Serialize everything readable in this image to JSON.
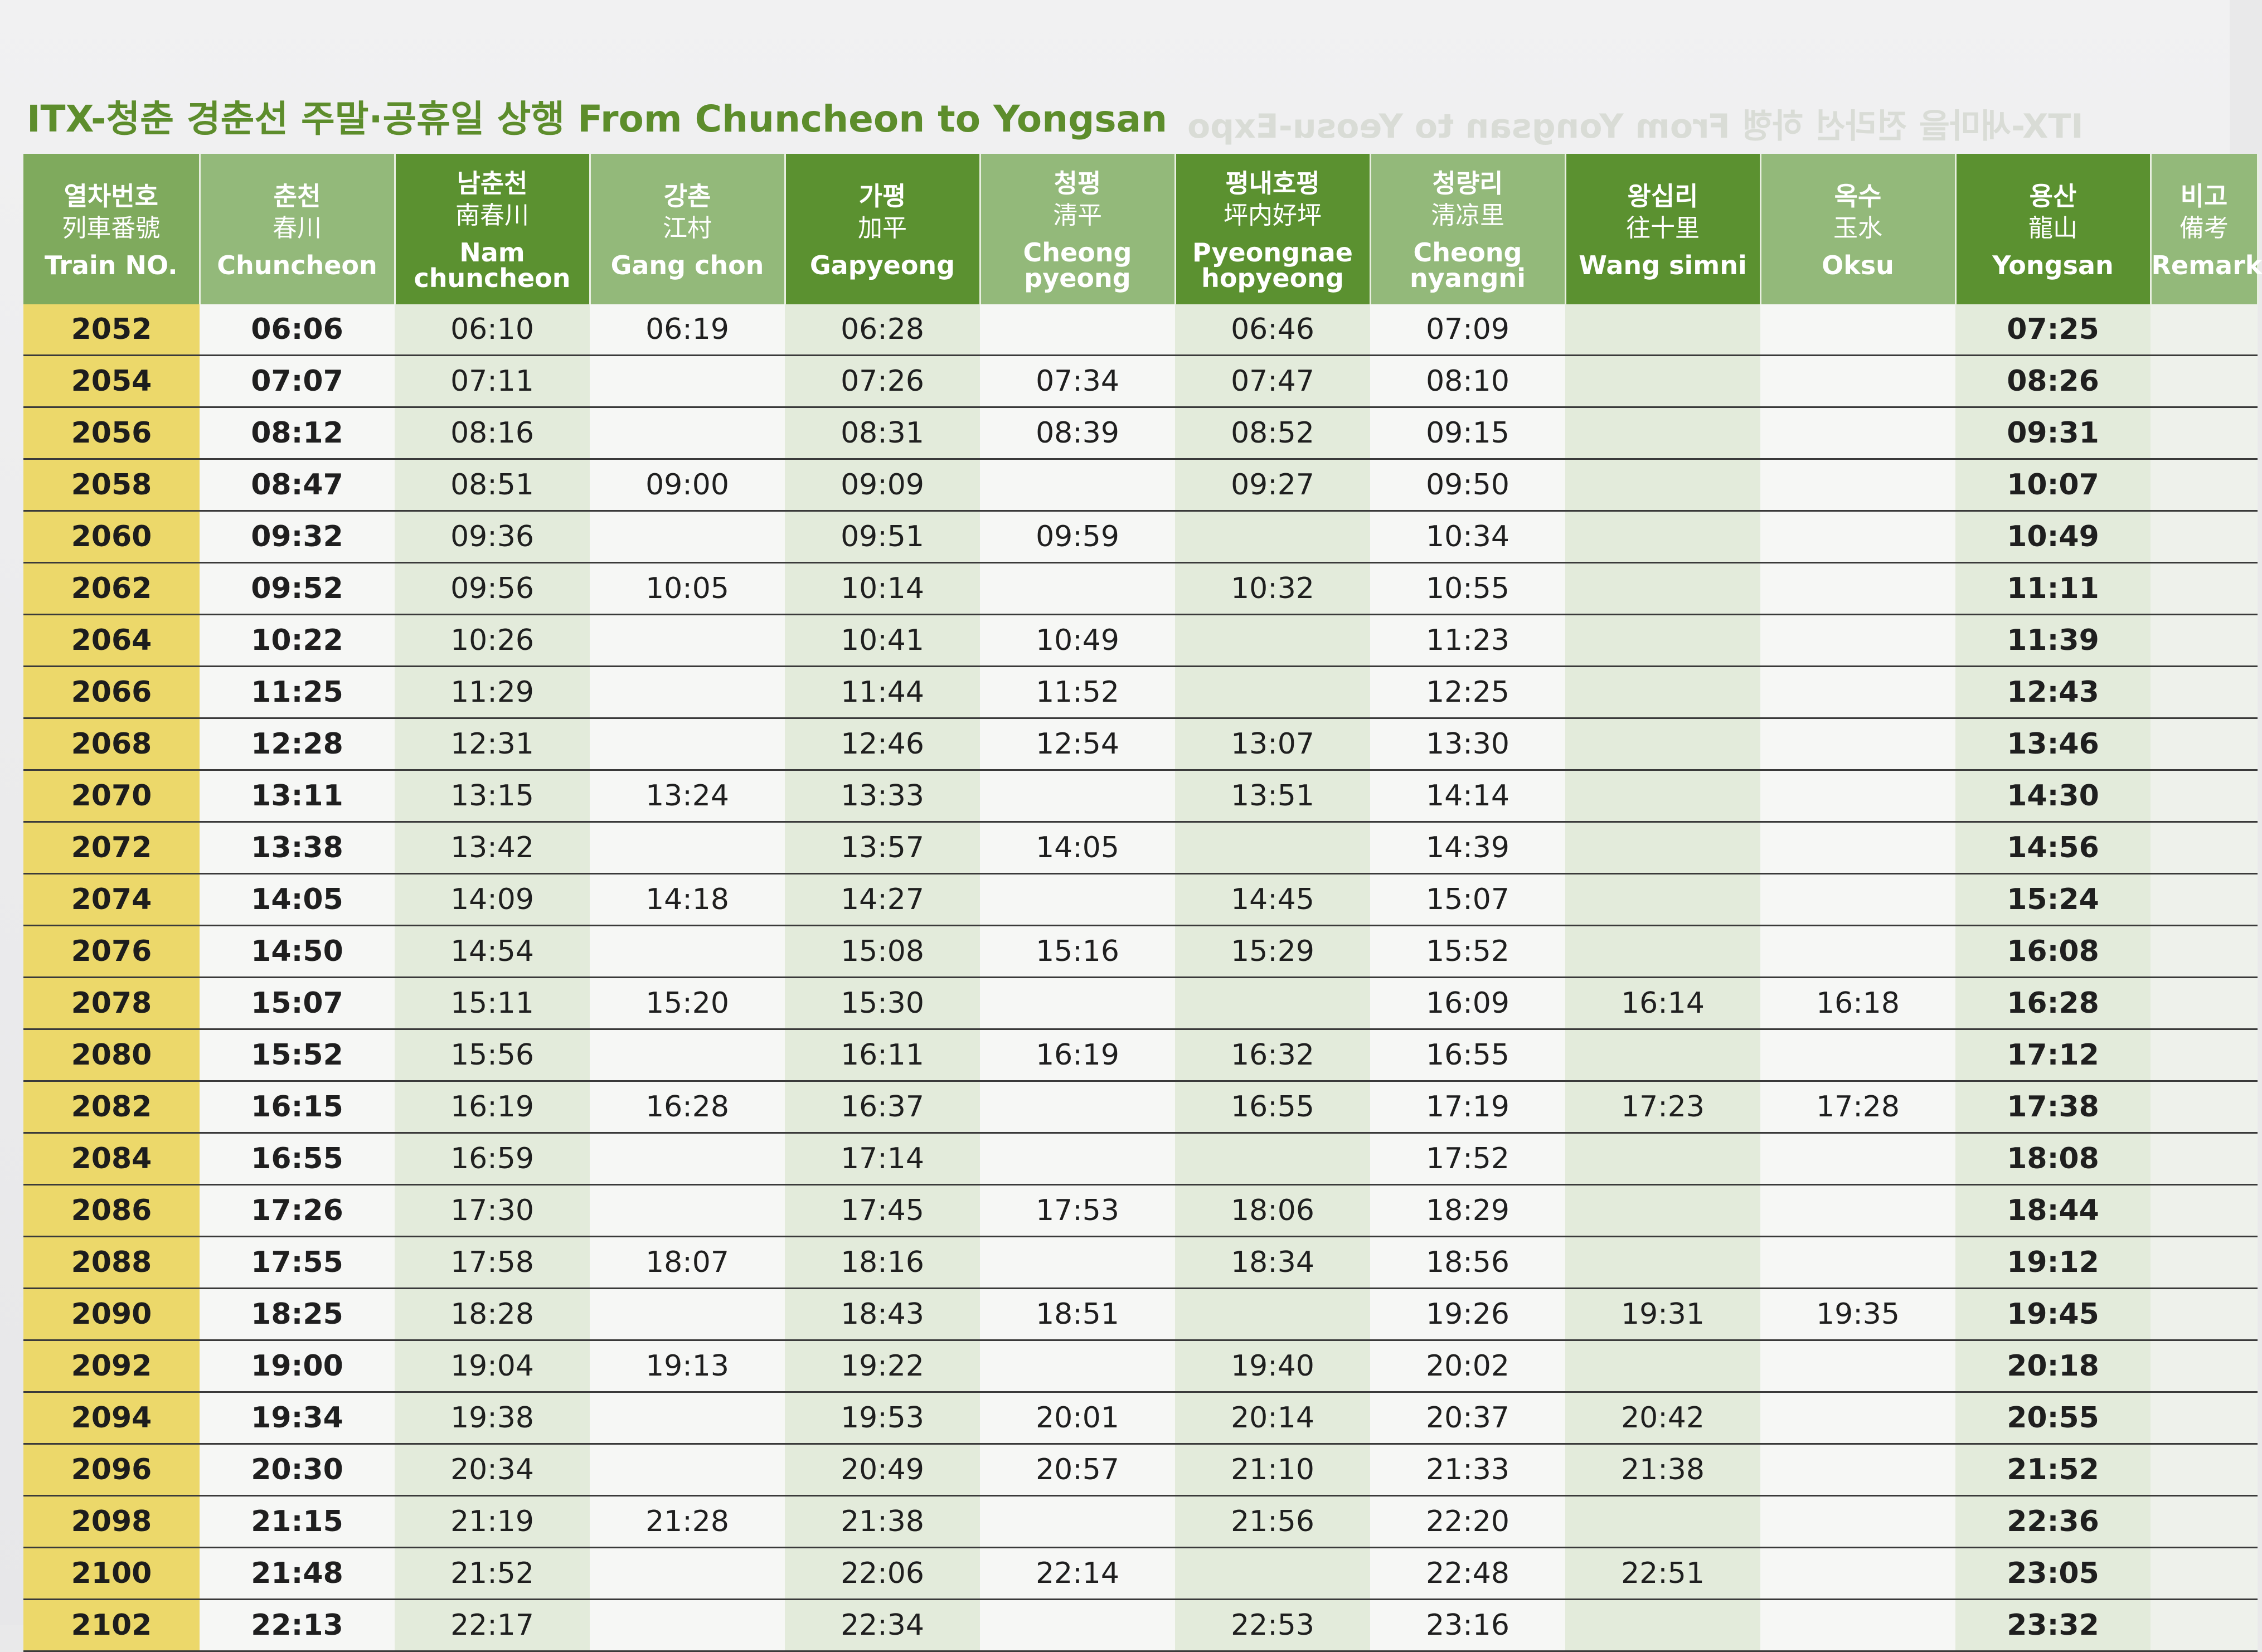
{
  "title": "ITX-청춘 경춘선 주말·공휴일 상행 From Chuncheon to Yongsan",
  "back_page_title": "ITX-새마을 전라선 하행 From Yongsan to Yeosu-Expo",
  "columns": [
    {
      "ko": "열차번호",
      "han": "列車番號",
      "en": "Train NO."
    },
    {
      "ko": "춘천",
      "han": "春川",
      "en": "Chuncheon"
    },
    {
      "ko": "남춘천",
      "han": "南春川",
      "en": "Nam chuncheon"
    },
    {
      "ko": "강촌",
      "han": "江村",
      "en": "Gang chon"
    },
    {
      "ko": "가평",
      "han": "加平",
      "en": "Gapyeong"
    },
    {
      "ko": "청평",
      "han": "淸平",
      "en": "Cheong pyeong"
    },
    {
      "ko": "평내호평",
      "han": "坪内好坪",
      "en": "Pyeongnae hopyeong"
    },
    {
      "ko": "청량리",
      "han": "淸凉里",
      "en": "Cheong nyangni"
    },
    {
      "ko": "왕십리",
      "han": "往十里",
      "en": "Wang simni"
    },
    {
      "ko": "옥수",
      "han": "玉水",
      "en": "Oksu"
    },
    {
      "ko": "용산",
      "han": "龍山",
      "en": "Yongsan"
    },
    {
      "ko": "비고",
      "han": "備考",
      "en": "Remark"
    }
  ],
  "rows": [
    [
      "2052",
      "06:06",
      "06:10",
      "06:19",
      "06:28",
      "",
      "06:46",
      "07:09",
      "",
      "",
      "07:25",
      ""
    ],
    [
      "2054",
      "07:07",
      "07:11",
      "",
      "07:26",
      "07:34",
      "07:47",
      "08:10",
      "",
      "",
      "08:26",
      ""
    ],
    [
      "2056",
      "08:12",
      "08:16",
      "",
      "08:31",
      "08:39",
      "08:52",
      "09:15",
      "",
      "",
      "09:31",
      ""
    ],
    [
      "2058",
      "08:47",
      "08:51",
      "09:00",
      "09:09",
      "",
      "09:27",
      "09:50",
      "",
      "",
      "10:07",
      ""
    ],
    [
      "2060",
      "09:32",
      "09:36",
      "",
      "09:51",
      "09:59",
      "",
      "10:34",
      "",
      "",
      "10:49",
      ""
    ],
    [
      "2062",
      "09:52",
      "09:56",
      "10:05",
      "10:14",
      "",
      "10:32",
      "10:55",
      "",
      "",
      "11:11",
      ""
    ],
    [
      "2064",
      "10:22",
      "10:26",
      "",
      "10:41",
      "10:49",
      "",
      "11:23",
      "",
      "",
      "11:39",
      ""
    ],
    [
      "2066",
      "11:25",
      "11:29",
      "",
      "11:44",
      "11:52",
      "",
      "12:25",
      "",
      "",
      "12:43",
      ""
    ],
    [
      "2068",
      "12:28",
      "12:31",
      "",
      "12:46",
      "12:54",
      "13:07",
      "13:30",
      "",
      "",
      "13:46",
      ""
    ],
    [
      "2070",
      "13:11",
      "13:15",
      "13:24",
      "13:33",
      "",
      "13:51",
      "14:14",
      "",
      "",
      "14:30",
      ""
    ],
    [
      "2072",
      "13:38",
      "13:42",
      "",
      "13:57",
      "14:05",
      "",
      "14:39",
      "",
      "",
      "14:56",
      ""
    ],
    [
      "2074",
      "14:05",
      "14:09",
      "14:18",
      "14:27",
      "",
      "14:45",
      "15:07",
      "",
      "",
      "15:24",
      ""
    ],
    [
      "2076",
      "14:50",
      "14:54",
      "",
      "15:08",
      "15:16",
      "15:29",
      "15:52",
      "",
      "",
      "16:08",
      ""
    ],
    [
      "2078",
      "15:07",
      "15:11",
      "15:20",
      "15:30",
      "",
      "",
      "16:09",
      "16:14",
      "16:18",
      "16:28",
      ""
    ],
    [
      "2080",
      "15:52",
      "15:56",
      "",
      "16:11",
      "16:19",
      "16:32",
      "16:55",
      "",
      "",
      "17:12",
      ""
    ],
    [
      "2082",
      "16:15",
      "16:19",
      "16:28",
      "16:37",
      "",
      "16:55",
      "17:19",
      "17:23",
      "17:28",
      "17:38",
      ""
    ],
    [
      "2084",
      "16:55",
      "16:59",
      "",
      "17:14",
      "",
      "",
      "17:52",
      "",
      "",
      "18:08",
      ""
    ],
    [
      "2086",
      "17:26",
      "17:30",
      "",
      "17:45",
      "17:53",
      "18:06",
      "18:29",
      "",
      "",
      "18:44",
      ""
    ],
    [
      "2088",
      "17:55",
      "17:58",
      "18:07",
      "18:16",
      "",
      "18:34",
      "18:56",
      "",
      "",
      "19:12",
      ""
    ],
    [
      "2090",
      "18:25",
      "18:28",
      "",
      "18:43",
      "18:51",
      "",
      "19:26",
      "19:31",
      "19:35",
      "19:45",
      ""
    ],
    [
      "2092",
      "19:00",
      "19:04",
      "19:13",
      "19:22",
      "",
      "19:40",
      "20:02",
      "",
      "",
      "20:18",
      ""
    ],
    [
      "2094",
      "19:34",
      "19:38",
      "",
      "19:53",
      "20:01",
      "20:14",
      "20:37",
      "20:42",
      "",
      "20:55",
      ""
    ],
    [
      "2096",
      "20:30",
      "20:34",
      "",
      "20:49",
      "20:57",
      "21:10",
      "21:33",
      "21:38",
      "",
      "21:52",
      ""
    ],
    [
      "2098",
      "21:15",
      "21:19",
      "21:28",
      "21:38",
      "",
      "21:56",
      "22:20",
      "",
      "",
      "22:36",
      ""
    ],
    [
      "2100",
      "21:48",
      "21:52",
      "",
      "22:06",
      "22:14",
      "",
      "22:48",
      "22:51",
      "",
      "23:05",
      ""
    ],
    [
      "2102",
      "22:13",
      "22:17",
      "",
      "22:34",
      "",
      "22:53",
      "23:16",
      "",
      "",
      "23:32",
      ""
    ]
  ]
}
